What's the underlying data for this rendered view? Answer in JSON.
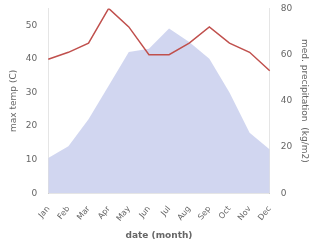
{
  "chart_data": {
    "type": "line",
    "categories": [
      "Jan",
      "Feb",
      "Mar",
      "Apr",
      "May",
      "Jun",
      "Jul",
      "Aug",
      "Sep",
      "Oct",
      "Nov",
      "Dec"
    ],
    "xlabel": "date (month)",
    "ylabel": "max temp (C)",
    "y2label": "med. precipitation  (kg/m2)",
    "series": [
      {
        "type": "area",
        "color": "#b8c0e8",
        "values": [
          10.5,
          14,
          22,
          32,
          42,
          43,
          49,
          45,
          40,
          30,
          18,
          13
        ]
      },
      {
        "type": "line",
        "color": "#c0504d",
        "axis": "y2",
        "values": [
          58,
          61,
          65,
          80,
          72,
          60,
          60,
          65,
          72,
          65,
          61,
          53
        ]
      }
    ],
    "ylim": [
      0,
      55
    ],
    "yticks": [
      0,
      10,
      20,
      30,
      40,
      50
    ],
    "y2lim": [
      0,
      80
    ],
    "y2ticks": [
      0,
      20,
      40,
      60,
      80
    ],
    "grid": false
  }
}
